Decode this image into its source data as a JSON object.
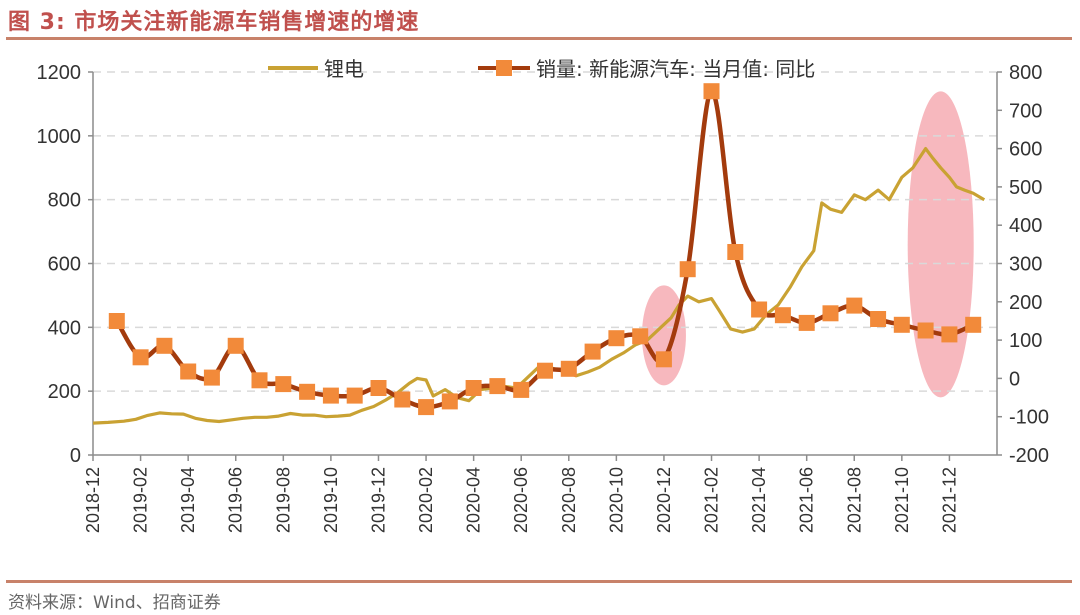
{
  "figure": {
    "title": "图 3:  市场关注新能源车销售增速的增速",
    "source": "资料来源：Wind、招商证券"
  },
  "colors": {
    "lithium": "#c9a233",
    "sales_line": "#a33b0d",
    "sales_marker": "#f28a3a",
    "highlight": "#f4a0a8",
    "rule": "#c8826a",
    "title": "#c0504d"
  },
  "chart_data": {
    "type": "line",
    "title": "",
    "xlabel": "",
    "ylabel": "",
    "x_range": [
      "2018-12",
      "2022-02"
    ],
    "y_left_lim": [
      0,
      1200
    ],
    "y_left_ticks": [
      0,
      200,
      400,
      600,
      800,
      1000,
      1200
    ],
    "y_right_lim": [
      -200,
      800
    ],
    "y_right_ticks": [
      -200,
      -100,
      0,
      100,
      200,
      300,
      400,
      500,
      600,
      700,
      800
    ],
    "x_tick_labels": [
      "2018-12",
      "2019-02",
      "2019-04",
      "2019-06",
      "2019-08",
      "2019-10",
      "2019-12",
      "2020-02",
      "2020-04",
      "2020-06",
      "2020-08",
      "2020-10",
      "2020-12",
      "2021-02",
      "2021-04",
      "2021-06",
      "2021-08",
      "2021-10",
      "2021-12"
    ],
    "grid": "horizontal dashed",
    "legend_placement": "top",
    "series": [
      {
        "name": "锂电",
        "axis": "left",
        "points": [
          [
            "2018-12-01",
            100
          ],
          [
            "2018-12-20",
            102
          ],
          [
            "2019-01-10",
            106
          ],
          [
            "2019-01-25",
            112
          ],
          [
            "2019-02-10",
            124
          ],
          [
            "2019-02-25",
            132
          ],
          [
            "2019-03-10",
            129
          ],
          [
            "2019-03-25",
            128
          ],
          [
            "2019-04-10",
            115
          ],
          [
            "2019-04-25",
            108
          ],
          [
            "2019-05-10",
            105
          ],
          [
            "2019-05-25",
            110
          ],
          [
            "2019-06-10",
            115
          ],
          [
            "2019-06-25",
            118
          ],
          [
            "2019-07-10",
            118
          ],
          [
            "2019-07-25",
            122
          ],
          [
            "2019-08-10",
            130
          ],
          [
            "2019-08-25",
            125
          ],
          [
            "2019-09-10",
            125
          ],
          [
            "2019-09-25",
            120
          ],
          [
            "2019-10-10",
            122
          ],
          [
            "2019-10-25",
            125
          ],
          [
            "2019-11-10",
            140
          ],
          [
            "2019-11-25",
            152
          ],
          [
            "2019-12-10",
            172
          ],
          [
            "2019-12-25",
            195
          ],
          [
            "2020-01-10",
            225
          ],
          [
            "2020-01-20",
            240
          ],
          [
            "2020-02-01",
            235
          ],
          [
            "2020-02-10",
            185
          ],
          [
            "2020-02-25",
            205
          ],
          [
            "2020-03-10",
            180
          ],
          [
            "2020-03-25",
            170
          ],
          [
            "2020-04-10",
            205
          ],
          [
            "2020-04-25",
            210
          ],
          [
            "2020-05-10",
            215
          ],
          [
            "2020-05-25",
            210
          ],
          [
            "2020-06-10",
            245
          ],
          [
            "2020-06-25",
            280
          ],
          [
            "2020-07-10",
            272
          ],
          [
            "2020-07-25",
            262
          ],
          [
            "2020-08-10",
            248
          ],
          [
            "2020-08-25",
            260
          ],
          [
            "2020-09-10",
            275
          ],
          [
            "2020-09-25",
            300
          ],
          [
            "2020-10-10",
            320
          ],
          [
            "2020-10-25",
            345
          ],
          [
            "2020-11-10",
            360
          ],
          [
            "2020-11-25",
            395
          ],
          [
            "2020-12-10",
            430
          ],
          [
            "2020-12-20",
            470
          ],
          [
            "2021-01-01",
            498
          ],
          [
            "2021-01-15",
            480
          ],
          [
            "2021-02-01",
            490
          ],
          [
            "2021-02-10",
            455
          ],
          [
            "2021-02-25",
            395
          ],
          [
            "2021-03-10",
            385
          ],
          [
            "2021-03-25",
            395
          ],
          [
            "2021-04-10",
            440
          ],
          [
            "2021-04-25",
            470
          ],
          [
            "2021-05-10",
            525
          ],
          [
            "2021-05-25",
            590
          ],
          [
            "2021-06-10",
            640
          ],
          [
            "2021-06-20",
            790
          ],
          [
            "2021-07-01",
            770
          ],
          [
            "2021-07-15",
            760
          ],
          [
            "2021-08-01",
            815
          ],
          [
            "2021-08-15",
            800
          ],
          [
            "2021-09-01",
            830
          ],
          [
            "2021-09-15",
            800
          ],
          [
            "2021-10-01",
            870
          ],
          [
            "2021-10-15",
            900
          ],
          [
            "2021-11-01",
            960
          ],
          [
            "2021-11-10",
            930
          ],
          [
            "2021-11-20",
            900
          ],
          [
            "2021-12-01",
            870
          ],
          [
            "2021-12-10",
            840
          ],
          [
            "2021-12-20",
            830
          ],
          [
            "2022-01-01",
            820
          ],
          [
            "2022-01-15",
            800
          ]
        ]
      },
      {
        "name": "销量: 新能源汽车: 当月值: 同比",
        "axis": "right",
        "points": [
          [
            "2019-01",
            150
          ],
          [
            "2019-02",
            55
          ],
          [
            "2019-03",
            85
          ],
          [
            "2019-04",
            18
          ],
          [
            "2019-05",
            2
          ],
          [
            "2019-06",
            85
          ],
          [
            "2019-07",
            -5
          ],
          [
            "2019-08",
            -15
          ],
          [
            "2019-09",
            -35
          ],
          [
            "2019-10",
            -45
          ],
          [
            "2019-11",
            -45
          ],
          [
            "2019-12",
            -25
          ],
          [
            "2020-01",
            -55
          ],
          [
            "2020-02",
            -75
          ],
          [
            "2020-03",
            -60
          ],
          [
            "2020-04",
            -25
          ],
          [
            "2020-05",
            -20
          ],
          [
            "2020-06",
            -30
          ],
          [
            "2020-07",
            20
          ],
          [
            "2020-08",
            25
          ],
          [
            "2020-09",
            70
          ],
          [
            "2020-10",
            105
          ],
          [
            "2020-11",
            110
          ],
          [
            "2020-12",
            50
          ],
          [
            "2021-01",
            285
          ],
          [
            "2021-02",
            750
          ],
          [
            "2021-03",
            330
          ],
          [
            "2021-04",
            180
          ],
          [
            "2021-05",
            165
          ],
          [
            "2021-06",
            145
          ],
          [
            "2021-07",
            170
          ],
          [
            "2021-08",
            190
          ],
          [
            "2021-09",
            155
          ],
          [
            "2021-10",
            140
          ],
          [
            "2021-11",
            125
          ],
          [
            "2021-12",
            115
          ],
          [
            "2022-01",
            140
          ]
        ]
      }
    ],
    "highlights": [
      {
        "center": "2020-12",
        "y_left": 375
      },
      {
        "center": "2021-11-20",
        "y_left": 660
      }
    ]
  }
}
